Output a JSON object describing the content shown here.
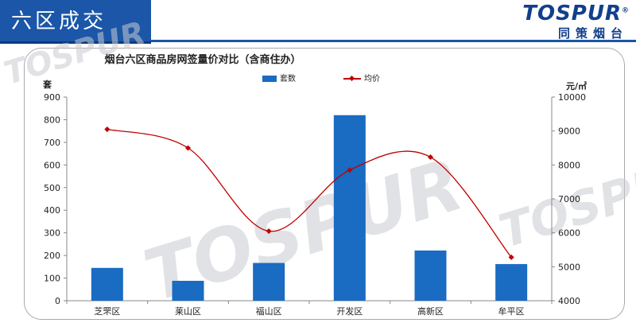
{
  "header": {
    "title": "六区成交"
  },
  "logo": {
    "wordmark": "TOSPUR",
    "registered": "®",
    "chinese": "同策烟台"
  },
  "watermark_text": "TOSPUR",
  "colors": {
    "brand_blue": "#1b56a8",
    "bar": "#1a6bc2",
    "line": "#c00000"
  },
  "chart_data": {
    "type": "bar",
    "title": "烟台六区商品房网签量价对比（含商住办）",
    "categories": [
      "芝罘区",
      "莱山区",
      "福山区",
      "开发区",
      "高新区",
      "牟平区"
    ],
    "series": [
      {
        "name": "套数",
        "type": "bar",
        "axis": "left",
        "values": [
          145,
          88,
          167,
          820,
          222,
          162
        ]
      },
      {
        "name": "均价",
        "type": "line",
        "axis": "right",
        "smooth": true,
        "values": [
          9050,
          8500,
          6050,
          7850,
          8230,
          5280
        ]
      }
    ],
    "y_left": {
      "unit": "套",
      "range": [
        0,
        900
      ],
      "ticks": [
        0,
        100,
        200,
        300,
        400,
        500,
        600,
        700,
        800,
        900
      ]
    },
    "y_right": {
      "unit": "元/㎡",
      "range": [
        4000,
        10000
      ],
      "ticks": [
        4000,
        5000,
        6000,
        7000,
        8000,
        9000,
        10000
      ]
    },
    "legend_position": "top",
    "grid": false
  }
}
